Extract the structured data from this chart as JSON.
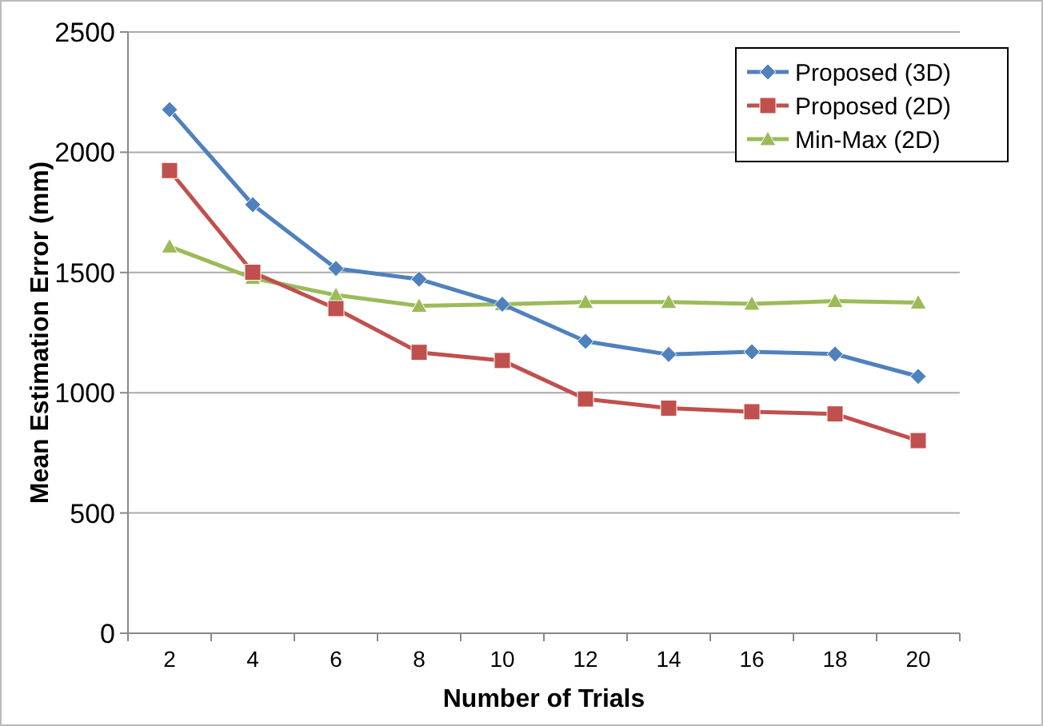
{
  "chart_data": {
    "type": "line",
    "xlabel": "Number of Trials",
    "ylabel": "Mean Estimation Error (mm)",
    "categories": [
      "2",
      "4",
      "6",
      "8",
      "10",
      "12",
      "14",
      "16",
      "18",
      "20"
    ],
    "ylim": [
      0,
      2500
    ],
    "yticks": [
      0,
      500,
      1000,
      1500,
      2000,
      2500
    ],
    "grid": "y",
    "legend": "top right",
    "series": [
      {
        "name": "Proposed (3D)",
        "color": "#4f81bd",
        "marker": "diamond",
        "values": [
          2177,
          1782,
          1517,
          1472,
          1368,
          1214,
          1159,
          1170,
          1161,
          1068
        ]
      },
      {
        "name": "Proposed (2D)",
        "color": "#c0504d",
        "marker": "square",
        "values": [
          1924,
          1501,
          1350,
          1168,
          1134,
          974,
          936,
          921,
          912,
          801
        ]
      },
      {
        "name": "Min-Max (2D)",
        "color": "#9bbb59",
        "marker": "triangle",
        "values": [
          1608,
          1477,
          1406,
          1361,
          1368,
          1377,
          1377,
          1370,
          1381,
          1375
        ]
      }
    ]
  }
}
